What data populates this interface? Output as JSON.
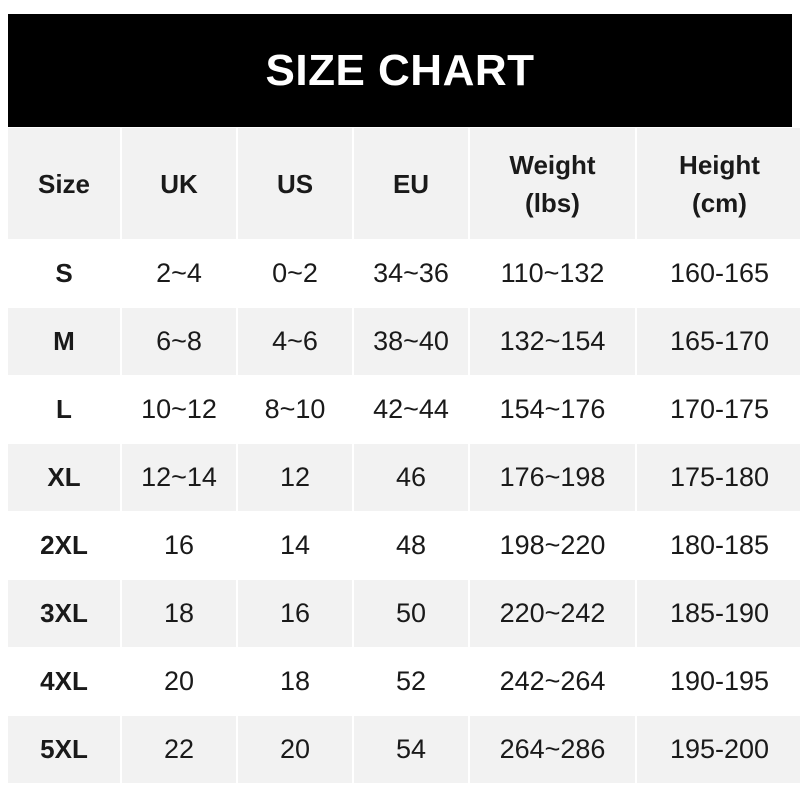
{
  "title": "SIZE CHART",
  "headers": [
    {
      "line1": "Size",
      "line2": ""
    },
    {
      "line1": "UK",
      "line2": ""
    },
    {
      "line1": "US",
      "line2": ""
    },
    {
      "line1": "EU",
      "line2": ""
    },
    {
      "line1": "Weight",
      "line2": "(lbs)"
    },
    {
      "line1": "Height",
      "line2": "(cm)"
    }
  ],
  "rows": [
    [
      "S",
      "2~4",
      "0~2",
      "34~36",
      "110~132",
      "160-165"
    ],
    [
      "M",
      "6~8",
      "4~6",
      "38~40",
      "132~154",
      "165-170"
    ],
    [
      "L",
      "10~12",
      "8~10",
      "42~44",
      "154~176",
      "170-175"
    ],
    [
      "XL",
      "12~14",
      "12",
      "46",
      "176~198",
      "175-180"
    ],
    [
      "2XL",
      "16",
      "14",
      "48",
      "198~220",
      "180-185"
    ],
    [
      "3XL",
      "18",
      "16",
      "50",
      "220~242",
      "185-190"
    ],
    [
      "4XL",
      "20",
      "18",
      "52",
      "242~264",
      "190-195"
    ],
    [
      "5XL",
      "22",
      "20",
      "54",
      "264~286",
      "195-200"
    ]
  ],
  "colors": {
    "title_bg": "#000000",
    "header_bg": "#f2f2f2",
    "alt_row_bg": "#f2f2f2"
  }
}
